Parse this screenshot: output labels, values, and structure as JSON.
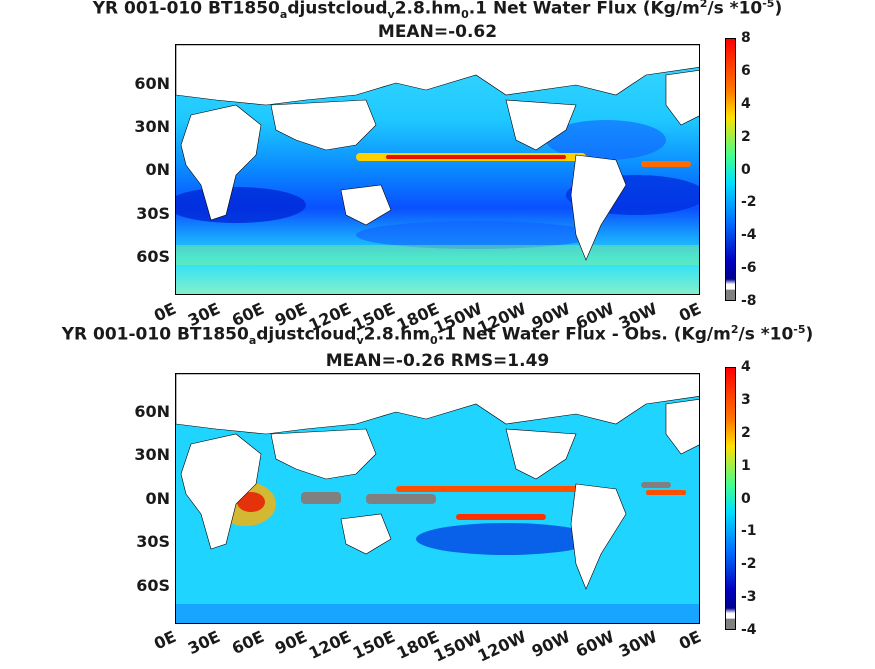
{
  "panels": [
    {
      "title": "YR 001-010 BT1850",
      "title_sub_a": "a",
      "title_mid": "djustcloud",
      "title_sub_v": "v",
      "title_mid2": "2.8.hm",
      "title_sub_0": "0",
      "title_end": ".1  Net Water Flux (Kg/m",
      "title_sup2": "2",
      "title_end2": "/s *10",
      "title_sup5": "-5",
      "title_close": ")",
      "subtitle": "MEAN=-0.62",
      "colorbar_ticks": [
        "8",
        "6",
        "4",
        "2",
        "0",
        "-2",
        "-4",
        "-6",
        "-8"
      ]
    },
    {
      "title": "YR 001-010 BT1850",
      "title_sub_a": "a",
      "title_mid": "djustcloud",
      "title_sub_v": "v",
      "title_mid2": "2.8.hm",
      "title_sub_0": "0",
      "title_end": ".1  Net Water Flux - Obs. (Kg/m",
      "title_sup2": "2",
      "title_end2": "/s *10",
      "title_sup5": "-5",
      "title_close": ")",
      "subtitle": "MEAN=-0.26 RMS=1.49",
      "colorbar_ticks": [
        "4",
        "3",
        "2",
        "1",
        "0",
        "-1",
        "-2",
        "-3",
        "-4"
      ]
    }
  ],
  "lat_labels": [
    "60N",
    "30N",
    "0N",
    "30S",
    "60S"
  ],
  "lon_labels": [
    "0E",
    "30E",
    "60E",
    "90E",
    "120E",
    "150E",
    "180E",
    "150W",
    "120W",
    "90W",
    "60W",
    "30W",
    "0E"
  ],
  "colors": {
    "ocean": "#1fe4ff",
    "land": "#ffffff",
    "missing": "#808080"
  }
}
